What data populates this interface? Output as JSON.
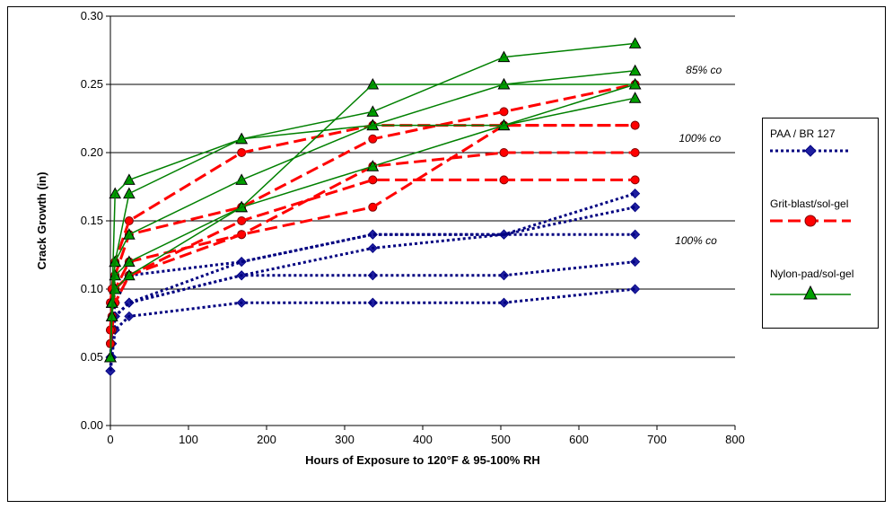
{
  "chart_data": {
    "type": "line",
    "title": "",
    "xlabel": "Hours of Exposure to 120°F & 95-100% RH",
    "ylabel": "Crack Growth (in)",
    "xlim": [
      0,
      800
    ],
    "ylim": [
      0,
      0.3
    ],
    "x_ticks": [
      "0",
      "100",
      "200",
      "300",
      "400",
      "500",
      "600",
      "700",
      "800"
    ],
    "y_ticks": [
      "0.00",
      "0.05",
      "0.10",
      "0.15",
      "0.20",
      "0.25",
      "0.30"
    ],
    "grid": "horizontal",
    "legend_position": "right",
    "annotations": [
      {
        "text": "85% co",
        "x": 760,
        "y": 0.258
      },
      {
        "text": "100% co",
        "x": 755,
        "y": 0.208
      },
      {
        "text": "100% co",
        "x": 750,
        "y": 0.133
      }
    ],
    "series": [
      {
        "name": "PAA / BR 127",
        "color": "#000080",
        "marker_color": "#1f1fa0",
        "marker": "diamond",
        "line_style": "dotted",
        "lines": [
          {
            "x": [
              0,
              2,
              6,
              24,
              168,
              336,
              504,
              672
            ],
            "y": [
              0.04,
              0.05,
              0.07,
              0.08,
              0.09,
              0.09,
              0.09,
              0.1
            ]
          },
          {
            "x": [
              0,
              2,
              6,
              24,
              168,
              336,
              504,
              672
            ],
            "y": [
              0.04,
              0.05,
              0.08,
              0.09,
              0.11,
              0.11,
              0.11,
              0.12
            ]
          },
          {
            "x": [
              0,
              2,
              6,
              24,
              168,
              336,
              504,
              672
            ],
            "y": [
              0.04,
              0.06,
              0.08,
              0.09,
              0.11,
              0.13,
              0.14,
              0.16
            ]
          },
          {
            "x": [
              0,
              2,
              6,
              24,
              168,
              336,
              504,
              672
            ],
            "y": [
              0.05,
              0.07,
              0.09,
              0.11,
              0.12,
              0.14,
              0.14,
              0.14
            ]
          },
          {
            "x": [
              0,
              2,
              6,
              24,
              168,
              336,
              504,
              672
            ],
            "y": [
              0.04,
              0.06,
              0.08,
              0.09,
              0.12,
              0.14,
              0.14,
              0.17
            ]
          }
        ]
      },
      {
        "name": "Grit-blast/sol-gel",
        "color": "#ff0000",
        "marker_color": "#ff0000",
        "marker": "circle",
        "line_style": "dashed",
        "lines": [
          {
            "x": [
              0,
              2,
              6,
              24,
              168,
              336,
              504,
              672
            ],
            "y": [
              0.06,
              0.07,
              0.09,
              0.11,
              0.14,
              0.16,
              0.22,
              0.22
            ]
          },
          {
            "x": [
              0,
              2,
              6,
              24,
              168,
              336,
              504,
              672
            ],
            "y": [
              0.06,
              0.08,
              0.1,
              0.11,
              0.15,
              0.18,
              0.18,
              0.18
            ]
          },
          {
            "x": [
              0,
              2,
              6,
              24,
              168,
              336,
              504,
              672
            ],
            "y": [
              0.07,
              0.09,
              0.1,
              0.12,
              0.14,
              0.19,
              0.2,
              0.2
            ]
          },
          {
            "x": [
              0,
              2,
              6,
              24,
              168,
              336,
              504,
              672
            ],
            "y": [
              0.07,
              0.09,
              0.11,
              0.14,
              0.16,
              0.21,
              0.23,
              0.25
            ]
          },
          {
            "x": [
              0,
              2,
              6,
              24,
              168,
              336,
              504,
              672
            ],
            "y": [
              0.09,
              0.1,
              0.12,
              0.15,
              0.2,
              0.22,
              0.22,
              0.22
            ]
          }
        ]
      },
      {
        "name": "Nylon-pad/sol-gel",
        "color": "#008000",
        "marker_color": "#00a000",
        "marker": "triangle",
        "line_style": "solid",
        "lines": [
          {
            "x": [
              0,
              2,
              6,
              24,
              168,
              336,
              504,
              672
            ],
            "y": [
              0.05,
              0.08,
              0.1,
              0.11,
              0.16,
              0.25,
              0.25,
              0.25
            ]
          },
          {
            "x": [
              0,
              2,
              6,
              24,
              168,
              336,
              504,
              672
            ],
            "y": [
              0.05,
              0.08,
              0.11,
              0.12,
              0.16,
              0.19,
              0.22,
              0.24
            ]
          },
          {
            "x": [
              0,
              2,
              6,
              24,
              168,
              336,
              504,
              672
            ],
            "y": [
              0.05,
              0.09,
              0.12,
              0.14,
              0.18,
              0.22,
              0.25,
              0.26
            ]
          },
          {
            "x": [
              0,
              2,
              6,
              24,
              168,
              336,
              504,
              672
            ],
            "y": [
              0.05,
              0.09,
              0.12,
              0.17,
              0.21,
              0.23,
              0.27,
              0.28
            ]
          },
          {
            "x": [
              0,
              2,
              6,
              24,
              168,
              336,
              504,
              672
            ],
            "y": [
              0.05,
              0.09,
              0.17,
              0.18,
              0.21,
              0.22,
              0.22,
              0.25
            ]
          }
        ]
      }
    ]
  }
}
